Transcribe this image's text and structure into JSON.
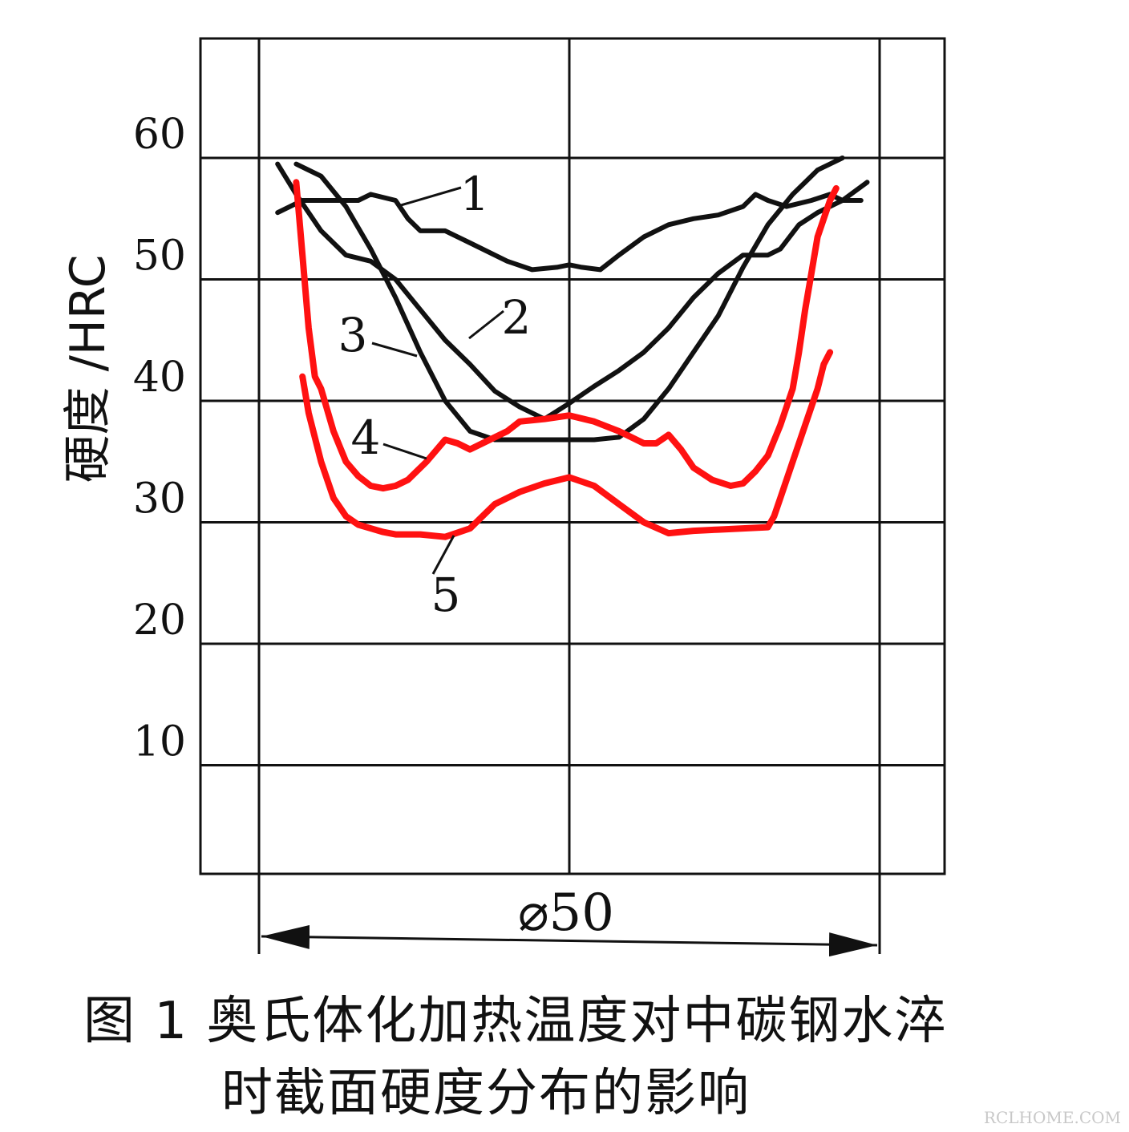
{
  "chart_data": {
    "type": "line",
    "ylabel": "硬度 /HRC",
    "yticks": [
      10,
      20,
      30,
      40,
      50,
      60
    ],
    "ylim": [
      0,
      70
    ],
    "xlim": [
      -25,
      25
    ],
    "dimension_label": "⌀50",
    "grid": true,
    "series": [
      {
        "name": "1",
        "color": "#111111",
        "x": [
          -23.5,
          -21.5,
          -19.5,
          -17,
          -16,
          -14,
          -13,
          -12,
          -10,
          -8,
          -5,
          -3,
          -1,
          0,
          1,
          2.5,
          4,
          6,
          8,
          10,
          12,
          14,
          15,
          16,
          17.5,
          19.5,
          21,
          22,
          23.5
        ],
        "y": [
          55.5,
          56.5,
          56.5,
          56.5,
          57,
          56.5,
          55,
          54,
          54,
          53,
          51.5,
          50.8,
          51,
          51.2,
          51,
          50.8,
          52,
          53.5,
          54.5,
          55,
          55.3,
          56,
          57,
          56.5,
          56,
          56.5,
          57,
          56.5,
          56.5
        ]
      },
      {
        "name": "2",
        "color": "#111111",
        "x": [
          -23.5,
          -22,
          -20,
          -18,
          -16,
          -14,
          -12,
          -10,
          -8,
          -6,
          -4,
          -2,
          0,
          2,
          4,
          6,
          8,
          10,
          12,
          14,
          16,
          17,
          18.5,
          20,
          22,
          24
        ],
        "y": [
          59.5,
          57,
          54,
          52,
          51.5,
          50,
          47.5,
          45,
          43,
          40.8,
          39.5,
          38.5,
          39.8,
          41.2,
          42.5,
          44,
          46,
          48.5,
          50.5,
          52,
          52,
          52.5,
          54.5,
          55.5,
          56.5,
          58
        ]
      },
      {
        "name": "3",
        "color": "#111111",
        "x": [
          -22,
          -20,
          -18,
          -16,
          -14,
          -12,
          -10,
          -8,
          -6,
          -4,
          -2,
          0,
          2,
          4,
          6,
          8,
          10,
          12,
          14,
          16,
          18,
          19,
          20,
          21,
          22
        ],
        "y": [
          59.5,
          58.5,
          56,
          52.5,
          48.5,
          44,
          40,
          37.5,
          36.8,
          36.8,
          36.8,
          36.8,
          36.8,
          37,
          38.5,
          41,
          44,
          47,
          51,
          54.5,
          57,
          58,
          59,
          59.5,
          60
        ]
      },
      {
        "name": "4",
        "color": "#ff1111",
        "x": [
          -22,
          -21.5,
          -21,
          -20.5,
          -20,
          -19,
          -18,
          -17,
          -16,
          -15,
          -14,
          -13,
          -11.5,
          -10,
          -9,
          -8,
          -7,
          -5,
          -4,
          -2,
          0,
          2,
          4,
          5,
          6,
          7,
          8,
          9,
          10,
          11.5,
          13,
          14,
          15,
          16,
          17,
          18,
          18.5,
          19,
          19.5,
          20,
          20.5,
          21,
          21.5
        ],
        "y": [
          58,
          52,
          46,
          42,
          41,
          37.5,
          35,
          33.8,
          33,
          32.8,
          33,
          33.5,
          35,
          36.8,
          36.5,
          36,
          36.5,
          37.5,
          38.3,
          38.5,
          38.8,
          38.3,
          37.5,
          37,
          36.5,
          36.5,
          37.2,
          36,
          34.5,
          33.5,
          33,
          33.2,
          34.2,
          35.5,
          38,
          41,
          44,
          47.5,
          50.5,
          53.5,
          55,
          56.5,
          57.5
        ]
      },
      {
        "name": "5",
        "color": "#ff1111",
        "x": [
          -21.5,
          -21,
          -20,
          -19,
          -18,
          -17,
          -16,
          -15,
          -14,
          -12,
          -10,
          -8,
          -6,
          -4,
          -2,
          0,
          2,
          4,
          6,
          8,
          10,
          12,
          14,
          16,
          16.5,
          17,
          18,
          19,
          20,
          20.5,
          21
        ],
        "y": [
          42,
          39,
          35,
          32,
          30.5,
          29.8,
          29.5,
          29.2,
          29,
          29,
          28.8,
          29.5,
          31.5,
          32.5,
          33.2,
          33.7,
          33,
          31.5,
          30,
          29.1,
          29.3,
          29.4,
          29.5,
          29.6,
          30.5,
          32,
          35,
          38,
          41,
          43,
          44
        ]
      }
    ]
  },
  "caption": {
    "line1": "图 1  奥氏体化加热温度对中碳钢水淬",
    "line2": "时截面硬度分布的影响"
  },
  "watermark": "RCLHOME.COM"
}
